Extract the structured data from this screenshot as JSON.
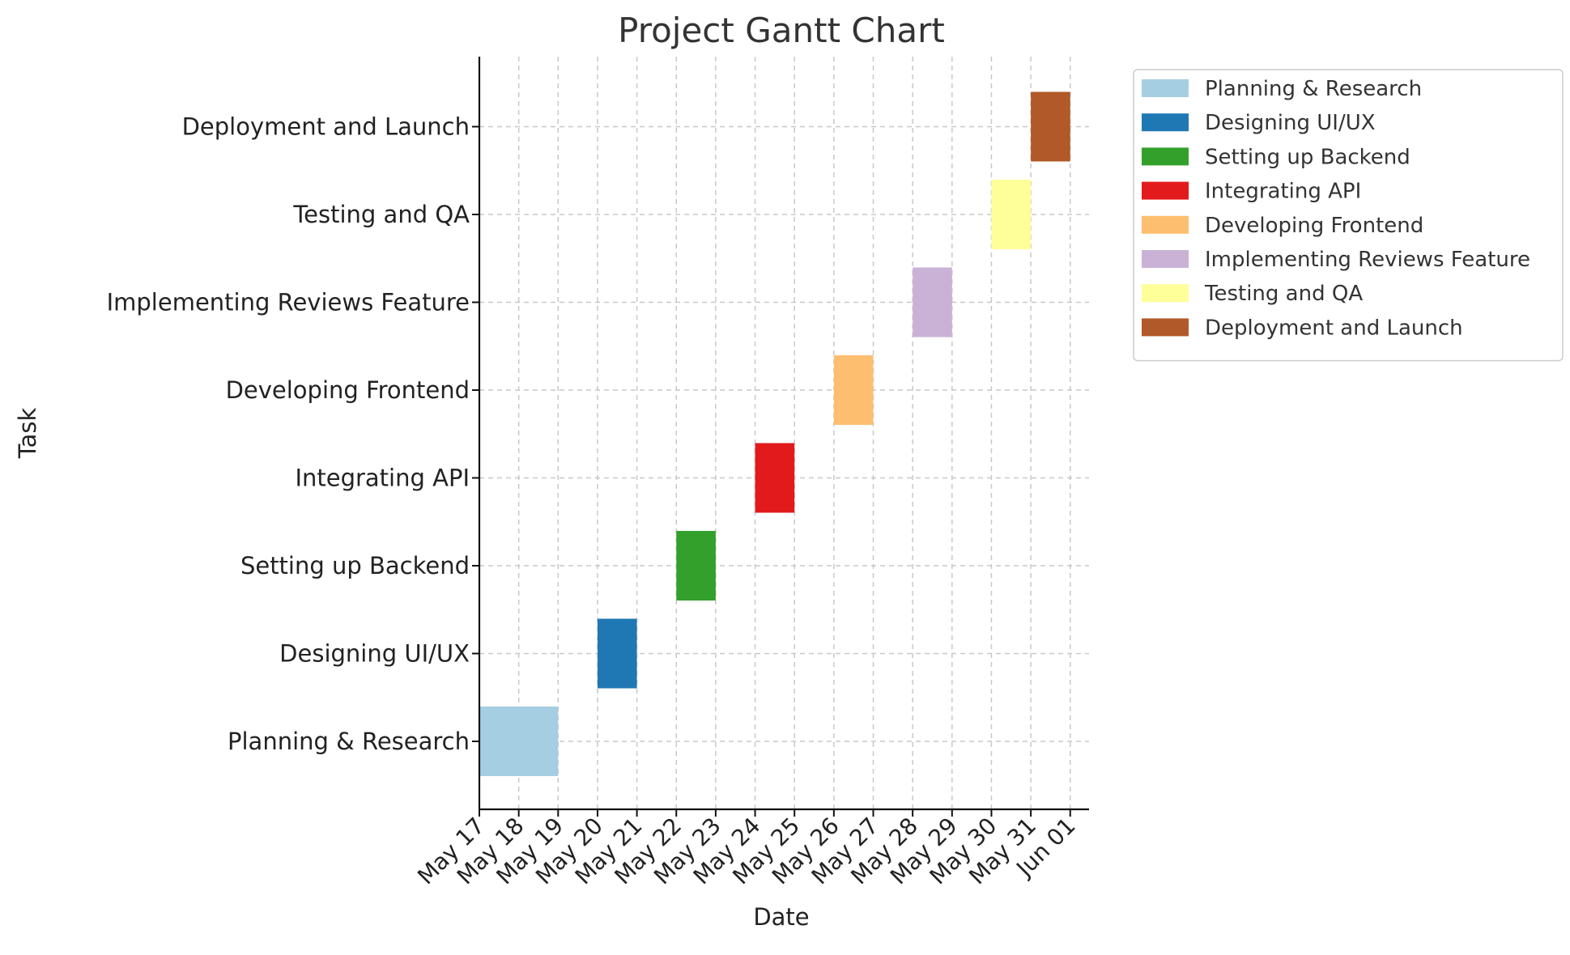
{
  "chart_data": {
    "type": "gantt",
    "title": "Project Gantt Chart",
    "xlabel": "Date",
    "ylabel": "Task",
    "x_axis": {
      "type": "date",
      "min": "2024-05-17",
      "max": "2024-06-01",
      "ticks": [
        "2024-05-17",
        "2024-05-18",
        "2024-05-19",
        "2024-05-20",
        "2024-05-21",
        "2024-05-22",
        "2024-05-23",
        "2024-05-24",
        "2024-05-25",
        "2024-05-26",
        "2024-05-27",
        "2024-05-28",
        "2024-05-29",
        "2024-05-30",
        "2024-05-31",
        "2024-06-01"
      ],
      "tick_labels": [
        "May 17",
        "May 18",
        "May 19",
        "May 20",
        "May 21",
        "May 22",
        "May 23",
        "May 24",
        "May 25",
        "May 26",
        "May 27",
        "May 28",
        "May 29",
        "May 30",
        "May 31",
        "Jun 01"
      ],
      "tick_rotation_deg": 45
    },
    "grid": true,
    "legend_placement": "outside-top-right",
    "tasks": [
      {
        "name": "Planning & Research",
        "start": "2024-05-17",
        "end": "2024-05-19",
        "color": "#a6cee3"
      },
      {
        "name": "Designing UI/UX",
        "start": "2024-05-20",
        "end": "2024-05-21",
        "color": "#1f78b4"
      },
      {
        "name": "Setting up Backend",
        "start": "2024-05-22",
        "end": "2024-05-23",
        "color": "#33a02c"
      },
      {
        "name": "Integrating API",
        "start": "2024-05-24",
        "end": "2024-05-25",
        "color": "#e31a1c"
      },
      {
        "name": "Developing Frontend",
        "start": "2024-05-26",
        "end": "2024-05-27",
        "color": "#fdbf6f"
      },
      {
        "name": "Implementing Reviews Feature",
        "start": "2024-05-28",
        "end": "2024-05-29",
        "color": "#cab2d6"
      },
      {
        "name": "Testing and QA",
        "start": "2024-05-30",
        "end": "2024-05-31",
        "color": "#ffff99"
      },
      {
        "name": "Deployment and Launch",
        "start": "2024-05-31",
        "end": "2024-06-01",
        "color": "#b15928"
      }
    ]
  }
}
